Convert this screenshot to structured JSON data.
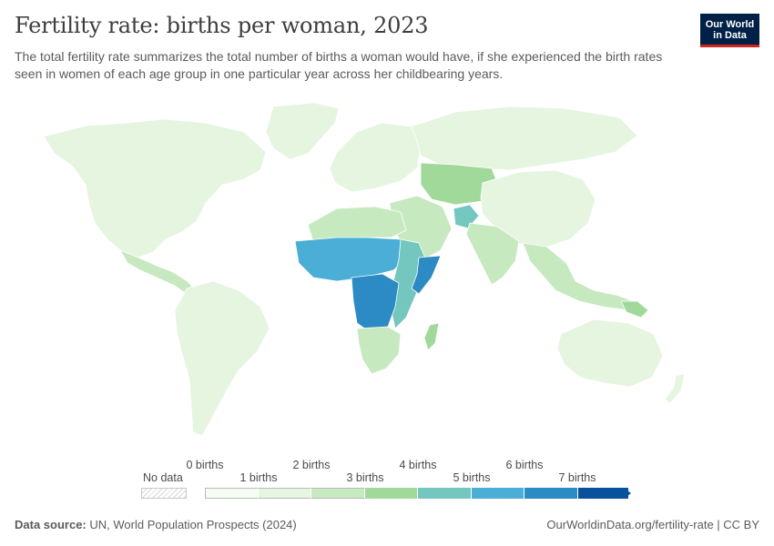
{
  "header": {
    "title": "Fertility rate: births per woman, 2023",
    "subtitle": "The total fertility rate summarizes the total number of births a woman would have, if she experienced the birth rates seen in women of each age group in one particular year across her childbearing years.",
    "logo_line1": "Our World",
    "logo_line2": "in Data"
  },
  "legend": {
    "no_data_label": "No data",
    "top_labels": [
      "0 births",
      "2 births",
      "4 births",
      "6 births"
    ],
    "bottom_labels": [
      "1 births",
      "3 births",
      "5 births",
      "7 births"
    ],
    "bins": [
      {
        "from": 0,
        "to": 1,
        "color": "#f7fcf5"
      },
      {
        "from": 1,
        "to": 2,
        "color": "#e5f5e0"
      },
      {
        "from": 2,
        "to": 3,
        "color": "#c7e9c0"
      },
      {
        "from": 3,
        "to": 4,
        "color": "#a1d99b"
      },
      {
        "from": 4,
        "to": 5,
        "color": "#74c7be"
      },
      {
        "from": 5,
        "to": 6,
        "color": "#4aaed6"
      },
      {
        "from": 6,
        "to": 7,
        "color": "#2c8ac4"
      },
      {
        "from": 7,
        "to": 8,
        "color": "#08519c"
      }
    ]
  },
  "footer": {
    "source_label": "Data source:",
    "source_text": "UN, World Population Prospects (2024)",
    "url_text": "OurWorldinData.org/fertility-rate | CC BY"
  },
  "map_regions": [
    {
      "name": "North America",
      "value": 1.6
    },
    {
      "name": "Greenland",
      "value": 1.8
    },
    {
      "name": "Central America",
      "value": 2.0
    },
    {
      "name": "South America",
      "value": 1.8
    },
    {
      "name": "Europe",
      "value": 1.5
    },
    {
      "name": "Russia",
      "value": 1.4
    },
    {
      "name": "North Africa",
      "value": 2.6
    },
    {
      "name": "Sahel",
      "value": 5.8
    },
    {
      "name": "Central Africa",
      "value": 6.2
    },
    {
      "name": "East Africa",
      "value": 4.2
    },
    {
      "name": "Southern Africa",
      "value": 2.4
    },
    {
      "name": "Middle East",
      "value": 2.8
    },
    {
      "name": "Central Asia",
      "value": 3.0
    },
    {
      "name": "South Asia",
      "value": 2.0
    },
    {
      "name": "Afghanistan",
      "value": 4.8
    },
    {
      "name": "China",
      "value": 1.0
    },
    {
      "name": "Southeast Asia",
      "value": 2.0
    },
    {
      "name": "Australia",
      "value": 1.6
    },
    {
      "name": "Madagascar",
      "value": 3.7
    },
    {
      "name": "Somalia",
      "value": 6.1
    },
    {
      "name": "Papua New Guinea",
      "value": 3.3
    },
    {
      "name": "New Zealand",
      "value": 1.6
    }
  ]
}
